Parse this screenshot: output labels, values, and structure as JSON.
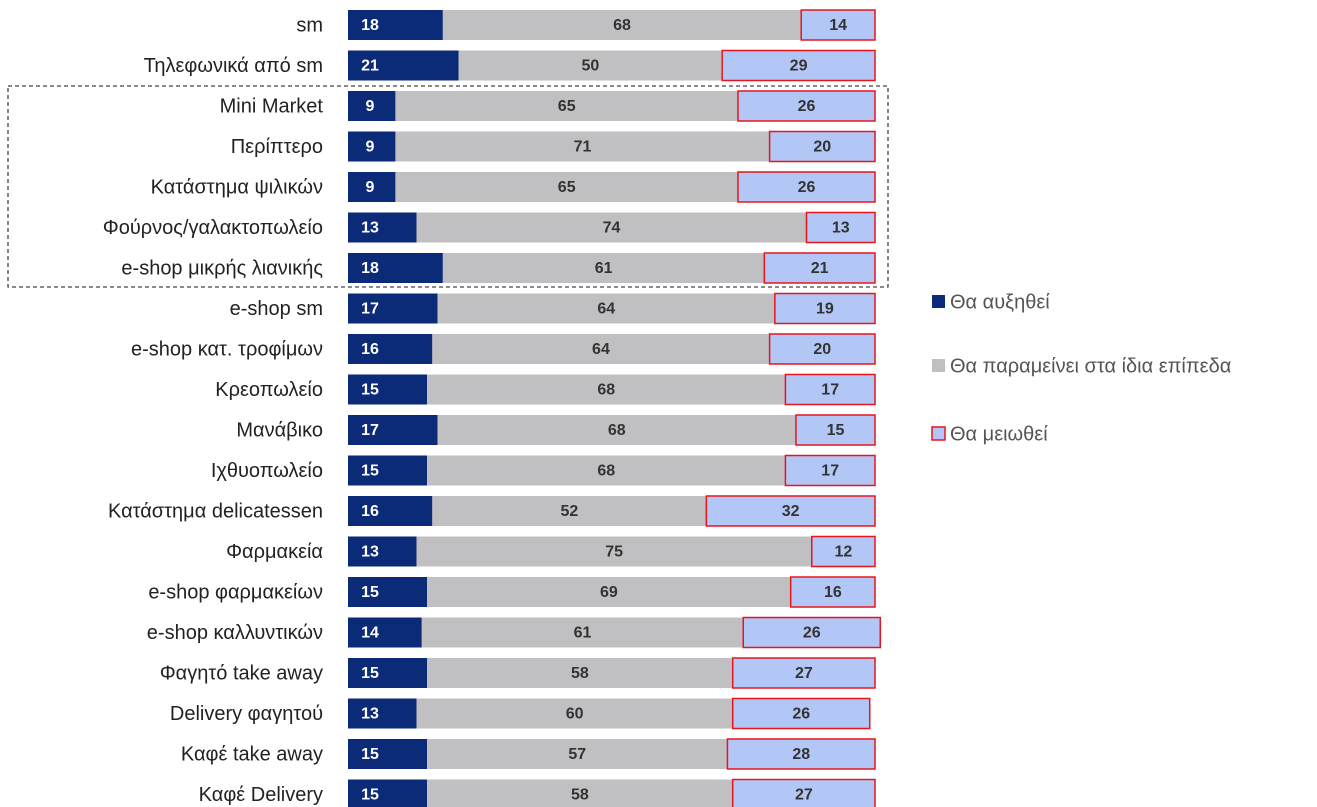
{
  "chart_data": {
    "type": "stacked-bar-horizontal",
    "categories": [
      "sm",
      "Τηλεφωνικά από sm",
      "Mini Market",
      "Περίπτερο",
      "Κατάστημα ψιλικών",
      "Φούρνος/γαλακτοπωλείο",
      "e-shop μικρής λιανικής",
      "e-shop sm",
      "e-shop κατ. τροφίμων",
      "Κρεοπωλείο",
      "Μανάβικο",
      "Ιχθυοπωλείο",
      "Κατάστημα delicatessen",
      "Φαρμακεία",
      "e-shop φαρμακείων",
      "e-shop καλλυντικών",
      "Φαγητό take away",
      "Delivery φαγητού",
      "Καφέ take away",
      "Καφέ Delivery"
    ],
    "series": [
      {
        "name": "Θα αυξηθεί",
        "color": "#0b2a78",
        "values": [
          18,
          21,
          9,
          9,
          9,
          13,
          18,
          17,
          16,
          15,
          17,
          15,
          16,
          13,
          15,
          14,
          15,
          13,
          15,
          15
        ]
      },
      {
        "name": "Θα παραμείνει στα ίδια επίπεδα",
        "color": "#c0c0c2",
        "values": [
          68,
          50,
          65,
          71,
          65,
          74,
          61,
          64,
          64,
          68,
          68,
          68,
          52,
          75,
          69,
          61,
          58,
          60,
          57,
          58
        ]
      },
      {
        "name": "Θα μειωθεί",
        "color": "#b3c7f7",
        "edge_color": "#e8141c",
        "values": [
          14,
          29,
          26,
          20,
          26,
          13,
          21,
          19,
          20,
          17,
          15,
          17,
          32,
          12,
          16,
          26,
          27,
          26,
          28,
          27
        ]
      }
    ],
    "xlim": [
      0,
      100
    ],
    "legend": "right"
  }
}
